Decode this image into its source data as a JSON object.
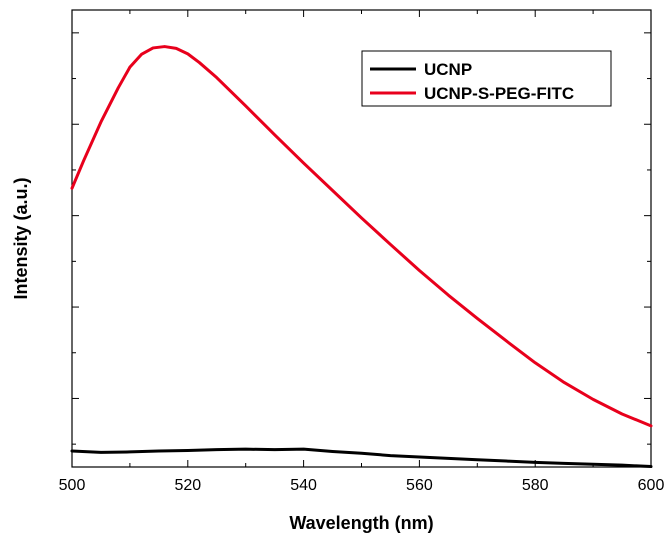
{
  "chart_data": {
    "type": "line",
    "title": "",
    "xlabel": "Wavelength (nm)",
    "ylabel": "Intensity (a.u.)",
    "xlim": [
      500,
      600
    ],
    "ylim": [
      0,
      1.0
    ],
    "xticks": [
      "500",
      "520",
      "540",
      "560",
      "580",
      "600"
    ],
    "y_tick_labels_shown": false,
    "grid": false,
    "legend_position": "top-right",
    "series": [
      {
        "name": "UCNP",
        "color": "#000000",
        "x": [
          500,
          505,
          510,
          515,
          520,
          525,
          530,
          535,
          540,
          545,
          550,
          555,
          560,
          565,
          570,
          575,
          580,
          585,
          590,
          595,
          600
        ],
        "y": [
          0.035,
          0.032,
          0.033,
          0.035,
          0.036,
          0.038,
          0.039,
          0.038,
          0.039,
          0.034,
          0.03,
          0.025,
          0.022,
          0.019,
          0.016,
          0.013,
          0.01,
          0.008,
          0.006,
          0.004,
          0.001
        ]
      },
      {
        "name": "UCNP-S-PEG-FITC",
        "color": "#e8001c",
        "x": [
          500,
          502,
          505,
          508,
          510,
          512,
          514,
          516,
          518,
          520,
          522,
          525,
          530,
          535,
          540,
          545,
          550,
          555,
          560,
          565,
          570,
          575,
          580,
          585,
          590,
          595,
          600
        ],
        "y": [
          0.61,
          0.67,
          0.755,
          0.83,
          0.875,
          0.903,
          0.917,
          0.92,
          0.916,
          0.904,
          0.885,
          0.852,
          0.79,
          0.727,
          0.665,
          0.605,
          0.545,
          0.487,
          0.43,
          0.376,
          0.325,
          0.276,
          0.228,
          0.185,
          0.148,
          0.116,
          0.09
        ]
      }
    ]
  }
}
